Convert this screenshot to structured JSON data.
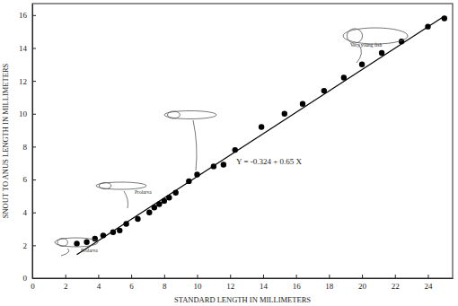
{
  "chart_data": {
    "type": "scatter",
    "xlabel": "STANDARD LENGTH IN MILLIMETERS",
    "ylabel": "SNOUT TO ANUS LENGTH IN MILLIMETERS",
    "annotations": [
      "Y = -0.324 + 0.65 X",
      "Prolarva",
      "Prolarva",
      "Very young fish"
    ],
    "xlim": [
      0,
      25.5
    ],
    "ylim": [
      0,
      16.7
    ],
    "xticks": [
      0,
      2,
      4,
      6,
      8,
      10,
      12,
      14,
      16,
      18,
      20,
      22,
      24
    ],
    "yticks": [
      0,
      2,
      4,
      6,
      8,
      10,
      12,
      14,
      16
    ],
    "grid": false,
    "series": [
      {
        "type": "scatter",
        "marker": "circle",
        "color": "#000000",
        "x": [
          2.7,
          3.3,
          3.8,
          4.3,
          4.9,
          5.3,
          5.7,
          6.4,
          7.1,
          7.4,
          7.7,
          8.0,
          8.3,
          8.7,
          9.5,
          10.0,
          11.0,
          11.6,
          12.3,
          13.9,
          15.3,
          16.4,
          17.7,
          18.9,
          20.0,
          21.2,
          22.4,
          24.0,
          25.0
        ],
        "values": [
          2.1,
          2.2,
          2.4,
          2.6,
          2.8,
          2.9,
          3.3,
          3.6,
          4.0,
          4.3,
          4.5,
          4.7,
          4.9,
          5.2,
          5.9,
          6.3,
          6.8,
          6.9,
          7.8,
          9.2,
          10.0,
          10.6,
          11.4,
          12.2,
          13.0,
          13.7,
          14.4,
          15.3,
          15.8
        ]
      },
      {
        "type": "line",
        "line_style": "solid",
        "color": "#000000",
        "x": [
          2.7,
          25.0
        ],
        "values": [
          1.43,
          15.93
        ]
      }
    ]
  }
}
